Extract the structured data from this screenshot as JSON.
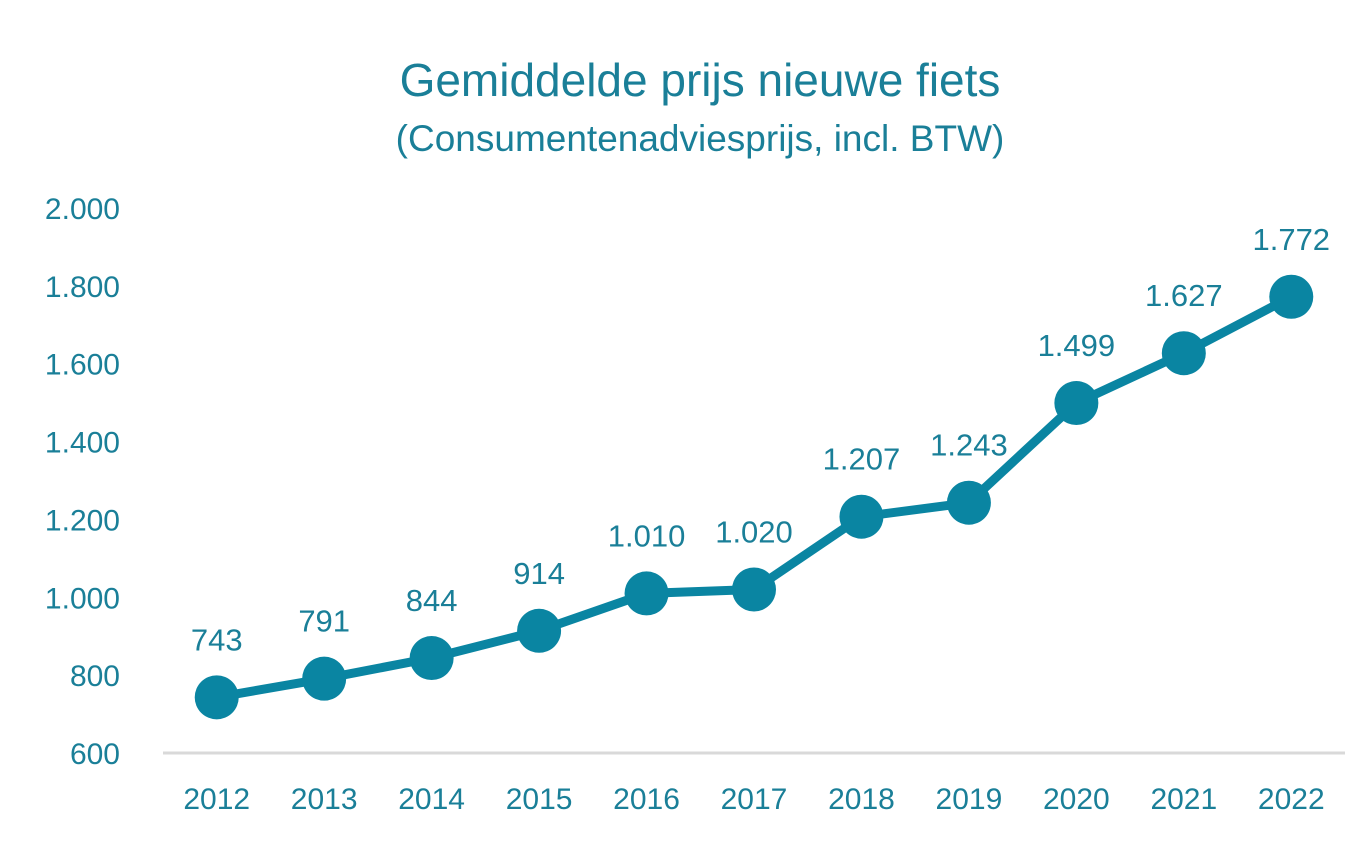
{
  "chart_data": {
    "type": "line",
    "title": "Gemiddelde prijs nieuwe fiets",
    "subtitle": "(Consumentenadviesprijs, incl. BTW)",
    "xlabel": "",
    "ylabel": "",
    "categories": [
      "2012",
      "2013",
      "2014",
      "2015",
      "2016",
      "2017",
      "2018",
      "2019",
      "2020",
      "2021",
      "2022"
    ],
    "values": [
      743,
      791,
      844,
      914,
      1010,
      1020,
      1207,
      1243,
      1499,
      1627,
      1772
    ],
    "data_labels": [
      "743",
      "791",
      "844",
      "914",
      "1.010",
      "1.020",
      "1.207",
      "1.243",
      "1.499",
      "1.627",
      "1.772"
    ],
    "ylim": [
      600,
      2000
    ],
    "yticks": [
      {
        "value": 600,
        "label": "600"
      },
      {
        "value": 800,
        "label": "800"
      },
      {
        "value": 1000,
        "label": "1.000"
      },
      {
        "value": 1200,
        "label": "1.200"
      },
      {
        "value": 1400,
        "label": "1.400"
      },
      {
        "value": 1600,
        "label": "1.600"
      },
      {
        "value": 1800,
        "label": "1.800"
      },
      {
        "value": 2000,
        "label": "2.000"
      }
    ],
    "grid": false,
    "legend": "none",
    "colors": {
      "line": "#0a85a2",
      "text": "#1a7f98",
      "axis": "#d9d9d9"
    }
  }
}
